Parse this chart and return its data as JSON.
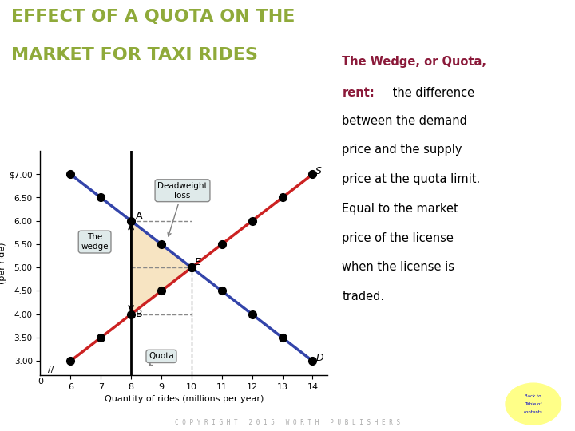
{
  "title_line1": "EFFECT OF A QUOTA ON THE",
  "title_line2": "MARKET FOR TAXI RIDES",
  "title_color": "#8faa3a",
  "bg_color": "#ffffff",
  "ylabel": "Fare\n(per ride)",
  "xlabel": "Quantity of rides (millions per year)",
  "supply_color": "#cc2222",
  "demand_color": "#3344aa",
  "supply_points": [
    [
      6,
      3
    ],
    [
      7,
      3.5
    ],
    [
      8,
      4
    ],
    [
      9,
      4.5
    ],
    [
      10,
      5
    ],
    [
      11,
      5.5
    ],
    [
      12,
      6
    ],
    [
      13,
      6.5
    ],
    [
      14,
      7
    ]
  ],
  "demand_points": [
    [
      6,
      7
    ],
    [
      7,
      6.5
    ],
    [
      8,
      6
    ],
    [
      9,
      5.5
    ],
    [
      10,
      5
    ],
    [
      11,
      4.5
    ],
    [
      12,
      4
    ],
    [
      13,
      3.5
    ],
    [
      14,
      3
    ]
  ],
  "quota_x": 8,
  "equilibrium_x": 10,
  "equilibrium_y": 5,
  "demand_at_quota": 6.0,
  "supply_at_quota": 4.0,
  "dashed_line_color": "#888888",
  "wedge_fill_color": "#f5deb3",
  "point_color": "#000000",
  "point_size": 7,
  "yticks": [
    3.0,
    3.5,
    4.0,
    4.5,
    5.0,
    5.5,
    6.0,
    6.5,
    7.0
  ],
  "ytick_labels": [
    "3.00",
    "3.50",
    "4.00",
    "4.50",
    "5.00",
    "5.50",
    "6.00",
    "6.50",
    "$7.00"
  ],
  "xticks": [
    6,
    7,
    8,
    9,
    10,
    11,
    12,
    13,
    14
  ],
  "xlim": [
    5,
    14.5
  ],
  "ylim": [
    2.7,
    7.5
  ],
  "label_A": "A",
  "label_B": "B",
  "label_E": "E",
  "label_S": "S",
  "label_D": "D",
  "deadweight_box_text": "Deadweight\nloss",
  "wedge_box_text": "The\nwedge",
  "quota_box_text": "Quota",
  "box_facecolor": "#dce8e8",
  "copyright_text": "C O P Y R I G H T   2 0 1 5   W O R T H   P U B L I S H E R S",
  "right_text_bold_color": "#8b1a3a",
  "right_text_normal_color": "#000000"
}
